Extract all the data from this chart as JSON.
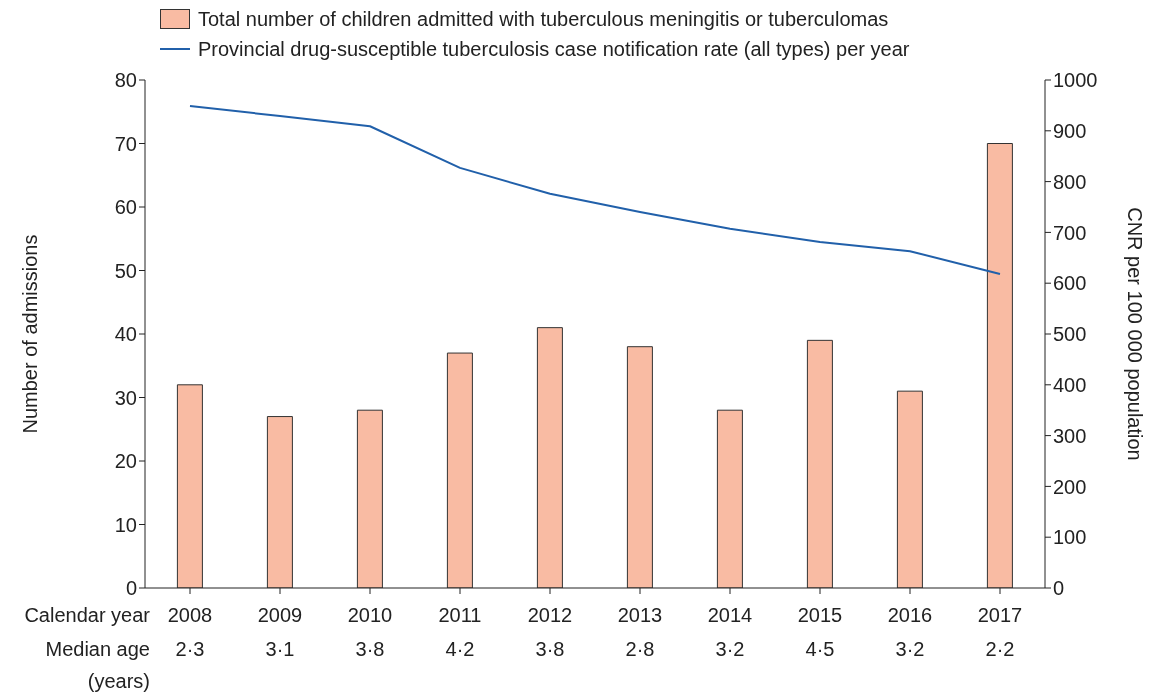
{
  "chart_data": {
    "type": "bar",
    "categories": [
      "2008",
      "2009",
      "2010",
      "2011",
      "2012",
      "2013",
      "2014",
      "2015",
      "2016",
      "2017"
    ],
    "series": [
      {
        "name": "Total number of children admitted with tuberculous meningitis or tuberculomas",
        "color": "#f9bba3",
        "values": [
          32,
          27,
          28,
          37,
          41,
          38,
          28,
          39,
          31,
          70
        ]
      },
      {
        "name": "Provincial drug-susceptible tuberculosis case notification rate (all types) per year",
        "type": "line",
        "axis": "y2",
        "color": "#2160aa",
        "values": [
          949,
          929,
          909,
          827,
          776,
          740,
          707,
          681,
          663,
          618
        ]
      }
    ],
    "ylabel": "Number of admissions",
    "y2label": "CNR per 100 000 population",
    "ylim": [
      0,
      80
    ],
    "yticks": [
      0,
      10,
      20,
      30,
      40,
      50,
      60,
      70,
      80
    ],
    "y2lim": [
      0,
      1000
    ],
    "y2ticks": [
      0,
      100,
      200,
      300,
      400,
      500,
      600,
      700,
      800,
      900,
      1000
    ],
    "annotations": [
      "Calendar year",
      "Median age (years)",
      "2·3",
      "3·1",
      "3·8",
      "4·2",
      "3·8",
      "2·8",
      "3·2",
      "4·5",
      "3·2",
      "2·2"
    ],
    "legend": "top",
    "grid": false,
    "marker": "none"
  }
}
